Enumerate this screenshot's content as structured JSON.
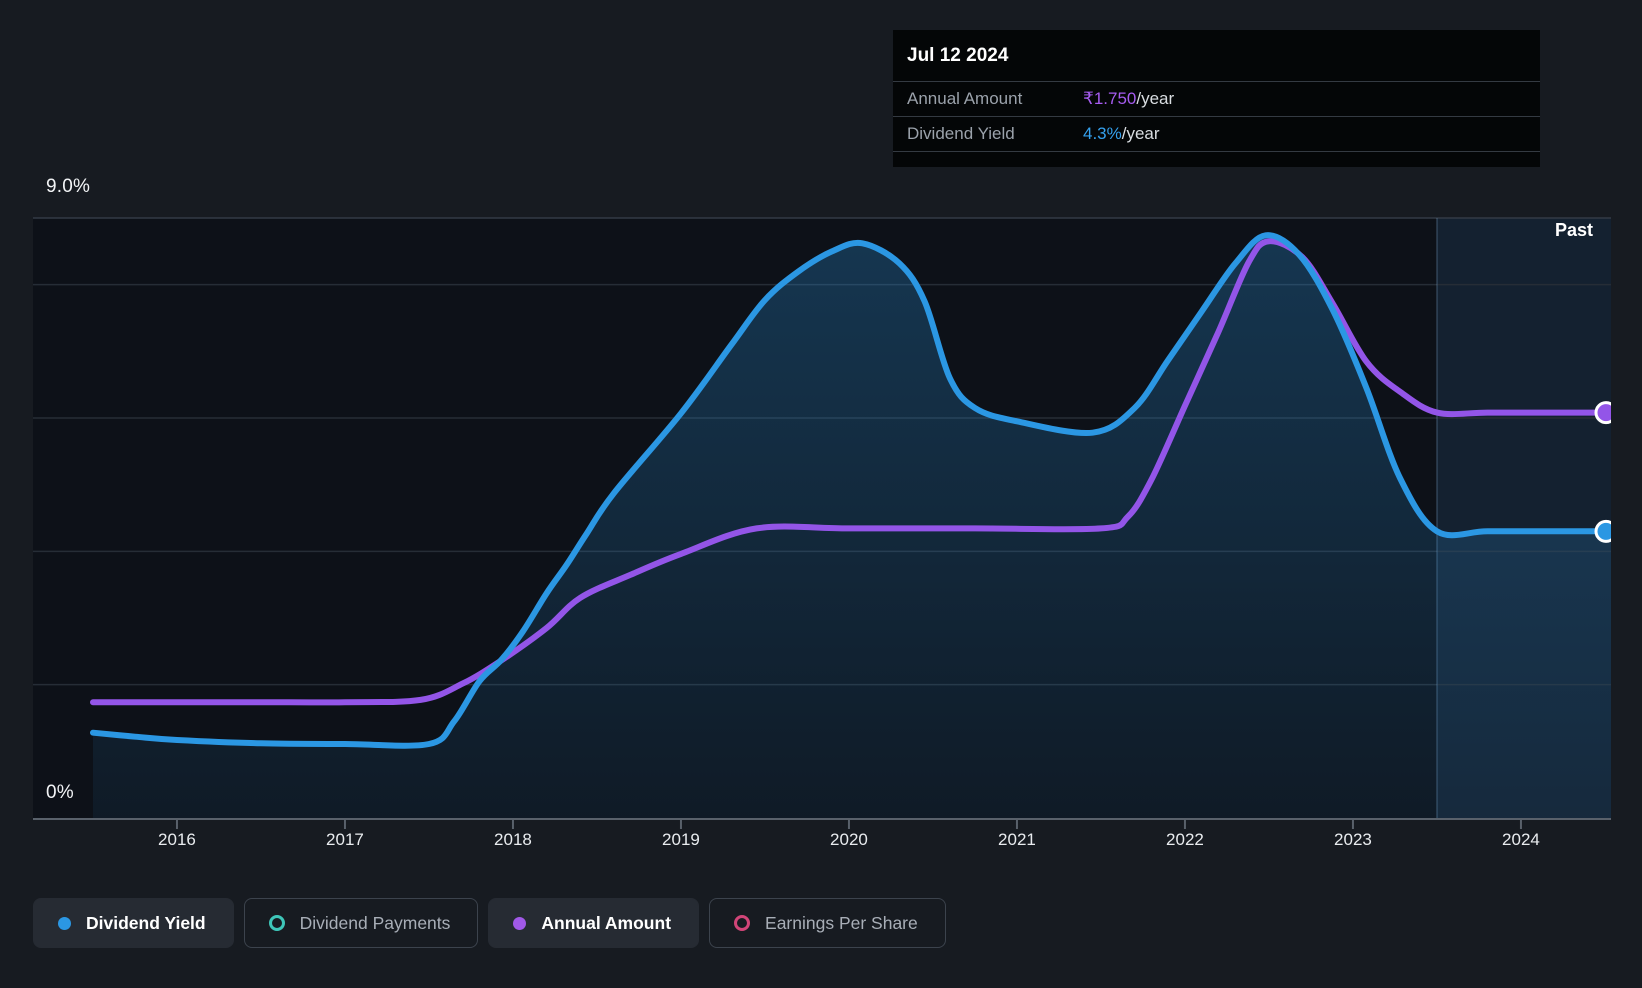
{
  "tooltip": {
    "date": "Jul 12 2024",
    "rows": [
      {
        "label": "Annual Amount",
        "value": "₹1.750",
        "suffix": "/year",
        "value_color": "#A65CF0"
      },
      {
        "label": "Dividend Yield",
        "value": "4.3%",
        "suffix": "/year",
        "value_color": "#35A1EE"
      }
    ]
  },
  "colors": {
    "page_bg": "#171B21",
    "plot_bg": "#0D1118",
    "gridline": "#262D36",
    "top_line": "#333B45",
    "axis": "#59616B",
    "past_overlay": "rgba(66,144,216,0.13)",
    "past_divider": "rgba(125,165,205,0.30)",
    "dividend_yield_blue": "#2B97E3",
    "annual_amount_purple": "#9355E8",
    "dividend_payments_teal": "#3EC6B9",
    "earnings_per_share_pink": "#D14578"
  },
  "chart_data": {
    "type": "area",
    "title": "Dividend history chart",
    "x_axis": {
      "ticks": [
        2016,
        2017,
        2018,
        2019,
        2020,
        2021,
        2022,
        2023,
        2024
      ],
      "range": [
        2015.143,
        2024.536
      ]
    },
    "y_axis": {
      "top_label": "9.0%",
      "bottom_label": "0%",
      "range": [
        0,
        9
      ],
      "gridlines": [
        2,
        4,
        6,
        8
      ],
      "top_line": 9,
      "grid": true
    },
    "past_region": {
      "label": "Past",
      "start_x": 2023.5
    },
    "series": [
      {
        "name": "Dividend Yield",
        "color": "#2B97E3",
        "unit": "%",
        "axis_range": [
          0,
          9
        ],
        "area_fill": true,
        "endpoint_dot": true,
        "end_value": "4.3%/year",
        "points": [
          [
            2015.5,
            1.28
          ],
          [
            2015.75,
            1.22
          ],
          [
            2016,
            1.17
          ],
          [
            2016.5,
            1.12
          ],
          [
            2017,
            1.11
          ],
          [
            2017.5,
            1.11
          ],
          [
            2017.65,
            1.45
          ],
          [
            2017.8,
            2.05
          ],
          [
            2017.93,
            2.37
          ],
          [
            2018.06,
            2.8
          ],
          [
            2018.2,
            3.37
          ],
          [
            2018.32,
            3.8
          ],
          [
            2018.44,
            4.27
          ],
          [
            2018.6,
            4.87
          ],
          [
            2019,
            6.07
          ],
          [
            2019.3,
            7.1
          ],
          [
            2019.5,
            7.77
          ],
          [
            2019.7,
            8.2
          ],
          [
            2019.9,
            8.5
          ],
          [
            2020.08,
            8.62
          ],
          [
            2020.3,
            8.32
          ],
          [
            2020.45,
            7.75
          ],
          [
            2020.6,
            6.6
          ],
          [
            2020.75,
            6.15
          ],
          [
            2021,
            5.95
          ],
          [
            2021.45,
            5.78
          ],
          [
            2021.7,
            6.15
          ],
          [
            2021.9,
            6.87
          ],
          [
            2022.1,
            7.6
          ],
          [
            2022.3,
            8.32
          ],
          [
            2022.48,
            8.74
          ],
          [
            2022.68,
            8.45
          ],
          [
            2022.88,
            7.62
          ],
          [
            2023.08,
            6.45
          ],
          [
            2023.28,
            5.1
          ],
          [
            2023.5,
            4.3
          ],
          [
            2023.8,
            4.3
          ],
          [
            2024.2,
            4.3
          ],
          [
            2024.536,
            4.3
          ]
        ]
      },
      {
        "name": "Annual Amount",
        "color": "#9355E8",
        "unit": "₹/year",
        "axis_range": [
          0,
          2.59
        ],
        "area_fill": false,
        "endpoint_dot": true,
        "end_value": "₹1.750/year",
        "points": [
          [
            2015.5,
            0.5
          ],
          [
            2016,
            0.5
          ],
          [
            2016.5,
            0.5
          ],
          [
            2017,
            0.5
          ],
          [
            2017.45,
            0.51
          ],
          [
            2017.7,
            0.58
          ],
          [
            2017.93,
            0.68
          ],
          [
            2018.2,
            0.82
          ],
          [
            2018.4,
            0.95
          ],
          [
            2018.7,
            1.05
          ],
          [
            2019,
            1.14
          ],
          [
            2019.45,
            1.25
          ],
          [
            2020,
            1.25
          ],
          [
            2020.75,
            1.25
          ],
          [
            2021.5,
            1.25
          ],
          [
            2021.66,
            1.3
          ],
          [
            2021.8,
            1.46
          ],
          [
            2022,
            1.78
          ],
          [
            2022.2,
            2.1
          ],
          [
            2022.38,
            2.4
          ],
          [
            2022.5,
            2.49
          ],
          [
            2022.7,
            2.42
          ],
          [
            2022.88,
            2.22
          ],
          [
            2023.08,
            1.97
          ],
          [
            2023.28,
            1.84
          ],
          [
            2023.5,
            1.75
          ],
          [
            2023.8,
            1.75
          ],
          [
            2024.2,
            1.75
          ],
          [
            2024.536,
            1.75
          ]
        ]
      }
    ]
  },
  "legend": [
    {
      "label": "Dividend Yield",
      "color": "#2B97E3",
      "active": true,
      "dot": "filled"
    },
    {
      "label": "Dividend Payments",
      "color": "#3EC6B9",
      "active": false,
      "dot": "ring"
    },
    {
      "label": "Annual Amount",
      "color": "#A159E8",
      "active": true,
      "dot": "filled"
    },
    {
      "label": "Earnings Per Share",
      "color": "#D14578",
      "active": false,
      "dot": "ring"
    }
  ]
}
